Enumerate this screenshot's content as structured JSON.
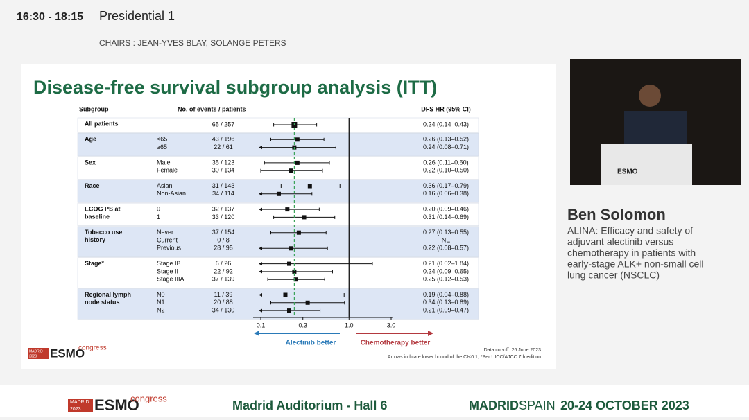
{
  "header": {
    "time": "16:30 - 18:15",
    "session": "Presidential 1",
    "chairs": "CHAIRS : JEAN-YVES BLAY, SOLANGE PETERS"
  },
  "chart_data": {
    "type": "forest",
    "title": "Disease-free survival subgroup analysis (ITT)",
    "columns": [
      "Subgroup",
      "No. of events / patients",
      "DFS HR (95% CI)"
    ],
    "log_x": true,
    "xlim": [
      0.1,
      3.0
    ],
    "xticks": [
      0.1,
      0.3,
      {
        "value": 1,
        "label": "1.0"
      },
      {
        "value": 3,
        "label": "3.0"
      }
    ],
    "color": "#111111",
    "reference_color": "#3aa35a",
    "band_color": "#dde6f5",
    "groups": [
      {
        "label": [
          "All patients"
        ],
        "subgroups": [
          null
        ],
        "events": [
          "65 / 257"
        ],
        "values": [
          0.24
        ],
        "lower": [
          0.14
        ],
        "upper": [
          0.43
        ],
        "value_labels": [
          "0.24 (0.14–0.43)"
        ]
      },
      {
        "label": [
          "Age"
        ],
        "subgroups": [
          "<65",
          "≥65"
        ],
        "events": [
          "43 / 196",
          "22 / 61"
        ],
        "values": [
          0.26,
          0.24
        ],
        "lower": [
          0.13,
          0.08
        ],
        "upper": [
          0.52,
          0.71
        ],
        "value_labels": [
          "0.26 (0.13–0.52)",
          "0.24 (0.08–0.71)"
        ]
      },
      {
        "label": [
          "Sex"
        ],
        "subgroups": [
          "Male",
          "Female"
        ],
        "events": [
          "35 / 123",
          "30 / 134"
        ],
        "values": [
          0.26,
          0.22
        ],
        "lower": [
          0.11,
          0.1
        ],
        "upper": [
          0.6,
          0.5
        ],
        "value_labels": [
          "0.26 (0.11–0.60)",
          "0.22 (0.10–0.50)"
        ]
      },
      {
        "label": [
          "Race"
        ],
        "subgroups": [
          "Asian",
          "Non-Asian"
        ],
        "events": [
          "31 / 143",
          "34 / 114"
        ],
        "values": [
          0.36,
          0.16
        ],
        "lower": [
          0.17,
          0.06
        ],
        "upper": [
          0.79,
          0.38
        ],
        "value_labels": [
          "0.36 (0.17–0.79)",
          "0.16 (0.06–0.38)"
        ]
      },
      {
        "label": [
          "ECOG PS at",
          "baseline"
        ],
        "subgroups": [
          "0",
          "1"
        ],
        "events": [
          "32 / 137",
          "33 / 120"
        ],
        "values": [
          0.2,
          0.31
        ],
        "lower": [
          0.09,
          0.14
        ],
        "upper": [
          0.46,
          0.69
        ],
        "value_labels": [
          "0.20 (0.09–0.46)",
          "0.31 (0.14–0.69)"
        ]
      },
      {
        "label": [
          "Tobacco use",
          "history"
        ],
        "subgroups": [
          "Never",
          "Current",
          "Previous"
        ],
        "events": [
          "37 / 154",
          "0 / 8",
          "28 / 95"
        ],
        "values": [
          0.27,
          null,
          0.22
        ],
        "lower": [
          0.13,
          null,
          0.08
        ],
        "upper": [
          0.55,
          null,
          0.57
        ],
        "value_labels": [
          "0.27 (0.13–0.55)",
          "NE",
          "0.22 (0.08–0.57)"
        ]
      },
      {
        "label": [
          "Stage*"
        ],
        "subgroups": [
          "Stage IB",
          "Stage II",
          "Stage IIIA"
        ],
        "events": [
          "6 / 26",
          "22 / 92",
          "37 / 139"
        ],
        "values": [
          0.21,
          0.24,
          0.25
        ],
        "lower": [
          0.02,
          0.09,
          0.12
        ],
        "upper": [
          1.84,
          0.65,
          0.53
        ],
        "value_labels": [
          "0.21 (0.02–1.84)",
          "0.24 (0.09–0.65)",
          "0.25 (0.12–0.53)"
        ]
      },
      {
        "label": [
          "Regional lymph",
          "node status"
        ],
        "subgroups": [
          "N0",
          "N1",
          "N2"
        ],
        "events": [
          "11 / 39",
          "20 / 88",
          "34 / 130"
        ],
        "values": [
          0.19,
          0.34,
          0.21
        ],
        "lower": [
          0.04,
          0.13,
          0.09
        ],
        "upper": [
          0.88,
          0.89,
          0.47
        ],
        "value_labels": [
          "0.19 (0.04–0.88)",
          "0.34 (0.13–0.89)",
          "0.21 (0.09–0.47)"
        ]
      }
    ],
    "left_label": "Alectinib better",
    "right_label": "Chemotherapy better",
    "notes": [
      "Data cut-off: 26 June 2023",
      "Arrows indicate lower bound of the CI<0.1; *Per UICC/AJCC 7th edition"
    ]
  },
  "logo": {
    "city": "MADRID",
    "year": "2023",
    "brand": "ESMO",
    "word": "congress"
  },
  "speaker": {
    "name": "Ben Solomon",
    "talk": [
      "ALINA: Efficacy and safety of",
      "adjuvant alectinib versus",
      "chemotherapy in patients with",
      "early-stage ALK+ non-small cell",
      "lung cancer (NSCLC)"
    ]
  },
  "footer": {
    "room": "Madrid Auditorium - Hall 6",
    "city": "MADRID",
    "country": "SPAIN",
    "dates": "20-24 OCTOBER 2023"
  }
}
